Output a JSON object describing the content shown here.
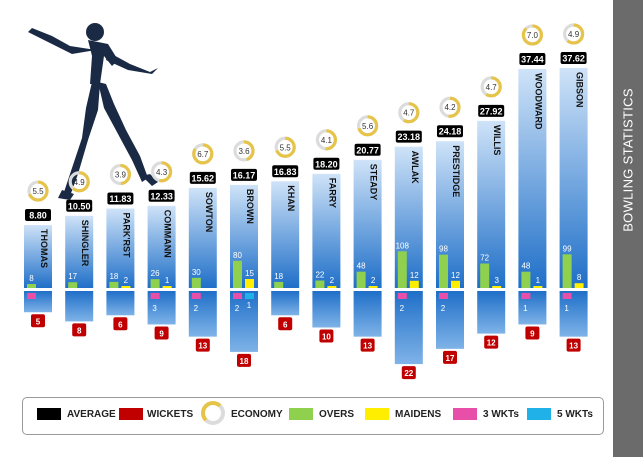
{
  "side_title": "BOWLING STATISTICS",
  "legend": {
    "average": "AVERAGE",
    "wickets": "WICKETS",
    "economy": "ECONOMY",
    "overs": "OVERS",
    "maidens": "MAIDENS",
    "three_wkts": "3 WKTs",
    "five_wkts": "5 WKTs"
  },
  "colors": {
    "bar_top": "#1f6fc8",
    "bar_bottom": "#cfe3f8",
    "overs": "#8fd14f",
    "maidens": "#ffee00",
    "three_wkts": "#e84fa8",
    "five_wkts": "#1fb1e8",
    "wickets": "#c00000",
    "average": "#000000",
    "economy_ring": "#e6c44a",
    "sidebar": "#6b6b6b"
  },
  "icons": {
    "header_graphic": "bowler-silhouette-icon"
  },
  "chart_data": {
    "type": "bar",
    "categories": [
      "THOMAS",
      "SHINGLER",
      "PARK'RST",
      "COMMANN",
      "SOWTON",
      "BROWN",
      "KHAN",
      "FARRY",
      "STEADY",
      "AWLAK",
      "PRESTIDGE",
      "WILLIS",
      "WOODWARD",
      "GIBSON"
    ],
    "average": [
      8.8,
      10.5,
      11.83,
      12.33,
      15.62,
      16.17,
      16.83,
      18.2,
      20.77,
      23.18,
      24.18,
      27.92,
      37.44,
      37.62
    ],
    "average_labels": [
      "8.80",
      "10.50",
      "11.83",
      "12.33",
      "15.62",
      "16.17",
      "16.83",
      "18.20",
      "20.77",
      "23.18",
      "24.18",
      "27.92",
      "37.44",
      "37.62"
    ],
    "economy": [
      5.5,
      4.9,
      3.9,
      4.3,
      6.7,
      3.6,
      5.5,
      4.1,
      5.6,
      4.7,
      4.2,
      4.7,
      7.0,
      4.9
    ],
    "economy_labels": [
      "5.5",
      "4.9",
      "3.9",
      "4.3",
      "6.7",
      "3.6",
      "5.5",
      "4.1",
      "5.6",
      "4.7",
      "4.2",
      "4.7",
      "7.0",
      "4.9"
    ],
    "overs": [
      8,
      17,
      18,
      26,
      30,
      80,
      18,
      22,
      48,
      108,
      98,
      72,
      48,
      99
    ],
    "overs_labels": [
      "8",
      "17",
      "18",
      "26",
      "30",
      "80",
      "18",
      "22",
      "48",
      "108",
      "98",
      "72",
      "48",
      "99"
    ],
    "maidens": [
      0,
      0,
      2,
      1,
      0,
      15,
      0,
      2,
      2,
      12,
      12,
      3,
      1,
      8
    ],
    "maidens_labels": [
      "",
      "",
      "2",
      "1",
      "",
      "15",
      "",
      "2",
      "2",
      "12",
      "12",
      "3",
      "1",
      "8"
    ],
    "three_wkts": [
      1,
      0,
      0,
      3,
      2,
      2,
      0,
      0,
      0,
      2,
      2,
      0,
      1,
      1
    ],
    "three_wkts_labels": [
      "",
      "",
      "",
      "3",
      "2",
      "2",
      "",
      "",
      "",
      "2",
      "2",
      "",
      "1",
      "1"
    ],
    "five_wkts": [
      0,
      0,
      0,
      0,
      0,
      1,
      0,
      0,
      0,
      0,
      0,
      0,
      0,
      0
    ],
    "five_wkts_labels": [
      "",
      "",
      "",
      "",
      "",
      "1",
      "",
      "",
      "",
      "",
      "",
      "",
      "",
      ""
    ],
    "wickets": [
      5,
      8,
      6,
      9,
      13,
      18,
      6,
      10,
      13,
      22,
      17,
      12,
      9,
      13
    ],
    "wickets_labels": [
      "5",
      "8",
      "6",
      "9",
      "13",
      "18",
      "6",
      "10",
      "13",
      "22",
      "17",
      "12",
      "9",
      "13"
    ]
  }
}
